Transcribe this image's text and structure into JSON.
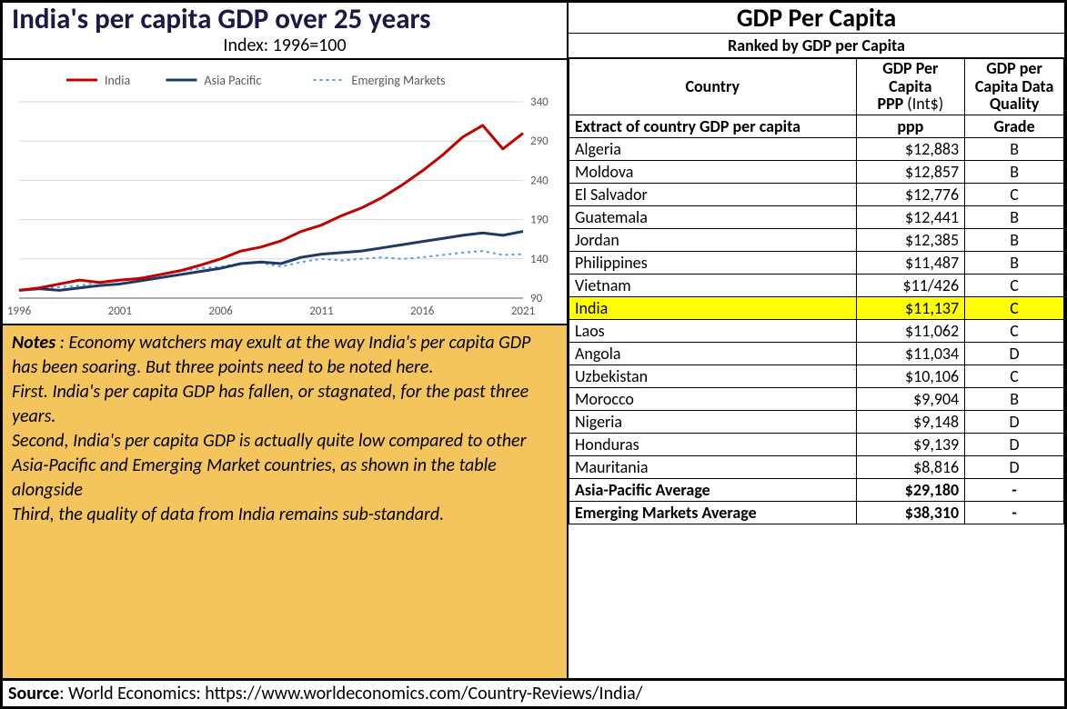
{
  "chart": {
    "title": "India's per capita GDP over 25 years",
    "subtitle": "Index: 1996=100",
    "type": "line",
    "x": {
      "ticks": [
        1996,
        2001,
        2006,
        2011,
        2016,
        2021
      ],
      "min": 1996,
      "max": 2021,
      "fontsize": 13,
      "color": "#595959"
    },
    "y": {
      "ticks": [
        90,
        140,
        190,
        240,
        290,
        340
      ],
      "min": 90,
      "max": 340,
      "fontsize": 13,
      "color": "#595959",
      "grid_color": "#d9d9d9"
    },
    "axis_line_color": "#595959",
    "legend": {
      "fontsize": 14,
      "color": "#595959",
      "items": [
        {
          "label": "India",
          "color": "#c00000",
          "dash": "none",
          "width": 3
        },
        {
          "label": "Asia Pacific",
          "color": "#1f3864",
          "dash": "none",
          "width": 3
        },
        {
          "label": "Emerging Markets",
          "color": "#5b9bd5",
          "dash": "3,4",
          "width": 2
        }
      ]
    },
    "series": {
      "years": [
        1996,
        1997,
        1998,
        1999,
        2000,
        2001,
        2002,
        2003,
        2004,
        2005,
        2006,
        2007,
        2008,
        2009,
        2010,
        2011,
        2012,
        2013,
        2014,
        2015,
        2016,
        2017,
        2018,
        2019,
        2020,
        2021
      ],
      "india": [
        100,
        103,
        108,
        113,
        110,
        113,
        115,
        120,
        125,
        132,
        140,
        150,
        155,
        163,
        175,
        183,
        195,
        205,
        218,
        234,
        252,
        272,
        295,
        310,
        280,
        300
      ],
      "asia_pacific": [
        100,
        102,
        100,
        103,
        106,
        108,
        112,
        116,
        120,
        124,
        128,
        134,
        136,
        134,
        142,
        146,
        148,
        150,
        154,
        158,
        162,
        166,
        170,
        173,
        170,
        175
      ],
      "emerging_markets": [
        100,
        103,
        104,
        106,
        110,
        112,
        116,
        120,
        124,
        128,
        130,
        134,
        135,
        130,
        136,
        140,
        138,
        140,
        142,
        140,
        142,
        145,
        148,
        150,
        145,
        146
      ]
    },
    "background_color": "#ffffff"
  },
  "notes": {
    "label": "Notes",
    "body": " : Economy watchers may exult at the way India's per capita GDP has been soaring.  But three points need to be noted here.\nFirst. India's per capita GDP has fallen, or stagnated, for the past three years.\nSecond, India's per capita GDP is actually quite low compared to other Asia-Pacific and Emerging Market countries, as shown in the table alongside\nThird, the quality of data from India remains sub-standard.",
    "background_color": "#f3c55c",
    "fontsize": 20
  },
  "table": {
    "title": "GDP Per Capita",
    "subtitle": "Ranked by GDP per Capita",
    "columns": {
      "country": "Country",
      "ppp_line1": "GDP Per Capita",
      "ppp_line2": "PPP",
      "ppp_unit": " (Int$)",
      "grade": "GDP per Capita Data Quality"
    },
    "subhead": {
      "country": "Extract of country GDP per capita",
      "ppp": "ppp",
      "grade": "Grade"
    },
    "highlight_row": "India",
    "highlight_color": "#ffff00",
    "rows": [
      {
        "country": "Algeria",
        "ppp": "$12,883",
        "grade": "B"
      },
      {
        "country": "Moldova",
        "ppp": "$12,857",
        "grade": "B"
      },
      {
        "country": "El Salvador",
        "ppp": "$12,776",
        "grade": "C"
      },
      {
        "country": "Guatemala",
        "ppp": "$12,441",
        "grade": "B"
      },
      {
        "country": "Jordan",
        "ppp": "$12,385",
        "grade": "B"
      },
      {
        "country": "Philippines",
        "ppp": "$11,487",
        "grade": "B"
      },
      {
        "country": "Vietnam",
        "ppp": "$11/426",
        "grade": "C"
      },
      {
        "country": "India",
        "ppp": "$11,137",
        "grade": "C"
      },
      {
        "country": "Laos",
        "ppp": "$11,062",
        "grade": "C"
      },
      {
        "country": "Angola",
        "ppp": "$11,034",
        "grade": "D"
      },
      {
        "country": "Uzbekistan",
        "ppp": "$10,106",
        "grade": "C"
      },
      {
        "country": "Morocco",
        "ppp": "$9,904",
        "grade": "B"
      },
      {
        "country": "Nigeria",
        "ppp": "$9,148",
        "grade": "D"
      },
      {
        "country": "Honduras",
        "ppp": "$9,139",
        "grade": "D"
      },
      {
        "country": "Mauritania",
        "ppp": "$8,816",
        "grade": "D"
      }
    ],
    "footer_rows": [
      {
        "country": "Asia-Pacific Average",
        "ppp": "$29,180",
        "grade": "-"
      },
      {
        "country": "Emerging Markets Average",
        "ppp": "$38,310",
        "grade": "-"
      }
    ]
  },
  "source": {
    "label": "Source",
    "text": ": World Economics: https://www.worldeconomics.com/Country-Reviews/India/"
  }
}
